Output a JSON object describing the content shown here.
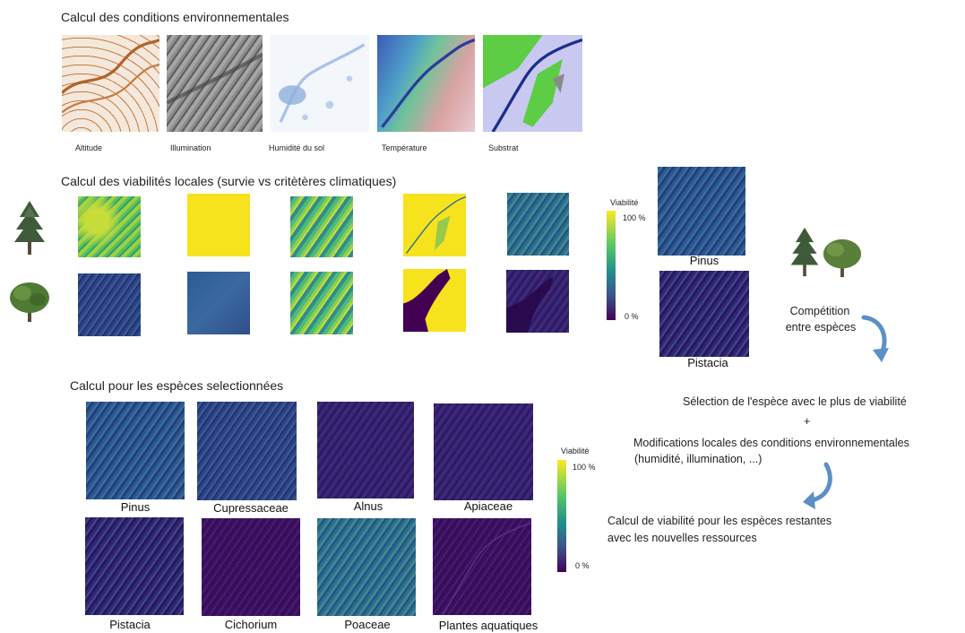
{
  "sections": {
    "env_title": "Calcul des conditions environnementales",
    "local_title": "Calcul des viabilités locales (survie vs critètères climatiques)",
    "selected_title": "Calcul pour les espèces selectionnées"
  },
  "env_maps": [
    {
      "label": "Altitude"
    },
    {
      "label": "Illumination"
    },
    {
      "label": "Humidité du sol"
    },
    {
      "label": "Température"
    },
    {
      "label": "Substrat"
    }
  ],
  "colorbar": {
    "title": "Viabilité",
    "max_label": "100 %",
    "min_label": "0 %",
    "colors": [
      "#fde725",
      "#5ec962",
      "#21918c",
      "#3b528b",
      "#440154"
    ]
  },
  "competition": {
    "pinus_label": "Pinus",
    "pistacia_label": "Pistacia",
    "competition_text": [
      "Compétition",
      "entre espèces"
    ],
    "selection_text": "Sélection de l'espèce avec le plus de viabilité",
    "plus": "+",
    "modification_text": [
      "Modifications locales des conditions environnementales",
      "(humidité, illumination, ...)"
    ],
    "recalc_text": [
      "Calcul de viabilité pour les espèces restantes",
      "avec les nouvelles ressources"
    ]
  },
  "species_maps": [
    {
      "label": "Pinus"
    },
    {
      "label": "Cupressaceae"
    },
    {
      "label": "Alnus"
    },
    {
      "label": "Apiaceae"
    },
    {
      "label": "Pistacia"
    },
    {
      "label": "Cichorium"
    },
    {
      "label": "Poaceae"
    },
    {
      "label": "Plantes aquatiques"
    }
  ],
  "icons": {
    "conifer": "conifer-tree-icon",
    "broadleaf": "broadleaf-tree-icon",
    "arrow": "curved-arrow-icon"
  },
  "accent_color": "#5b8fc7"
}
